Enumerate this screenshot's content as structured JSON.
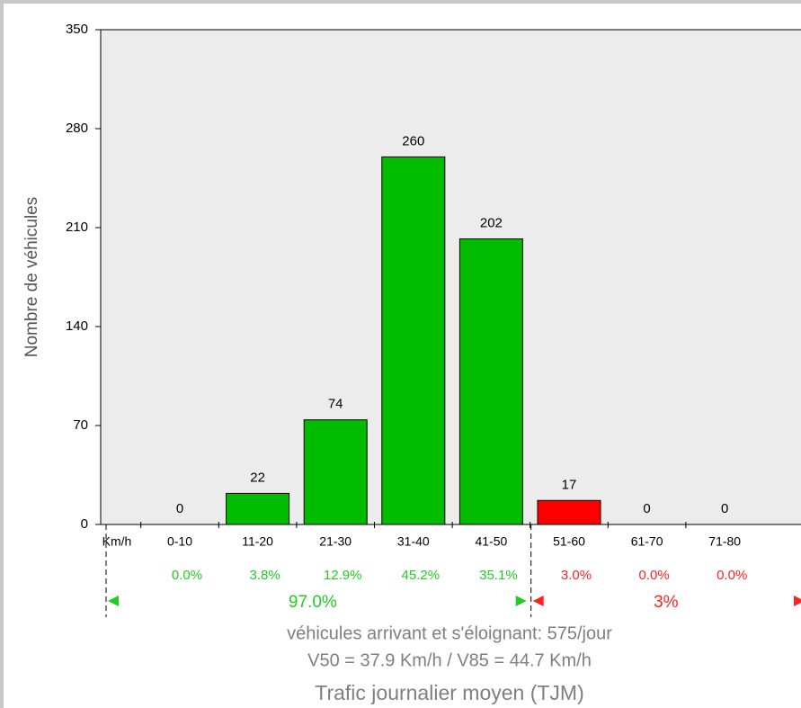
{
  "chart_data": {
    "type": "bar",
    "y_label": "Nombre de véhicules",
    "x_unit_label": "Km/h",
    "categories": [
      "0-10",
      "11-20",
      "21-30",
      "31-40",
      "41-50",
      "51-60",
      "61-70",
      "71-80"
    ],
    "values": [
      0,
      22,
      74,
      260,
      202,
      17,
      0,
      0
    ],
    "colors": [
      "#00bb00",
      "#00bb00",
      "#00bb00",
      "#00bb00",
      "#00bb00",
      "#ff0000",
      "#ff0000",
      "#ff0000"
    ],
    "percentages": [
      "0.0%",
      "3.8%",
      "12.9%",
      "45.2%",
      "35.1%",
      "3.0%",
      "0.0%",
      "0.0%"
    ],
    "groups": [
      {
        "label": "97.0%",
        "color": "#22cc22"
      },
      {
        "label": "3%",
        "color": "#ff2222"
      }
    ],
    "ylim": [
      0,
      350
    ],
    "yticks": [
      0,
      70,
      140,
      210,
      280,
      350
    ],
    "footer": [
      "véhicules arrivant et s'éloignant: 575/jour",
      "V50 = 37.9 Km/h    /    V85 = 44.7 Km/h",
      "Trafic journalier moyen (TJM)"
    ]
  }
}
